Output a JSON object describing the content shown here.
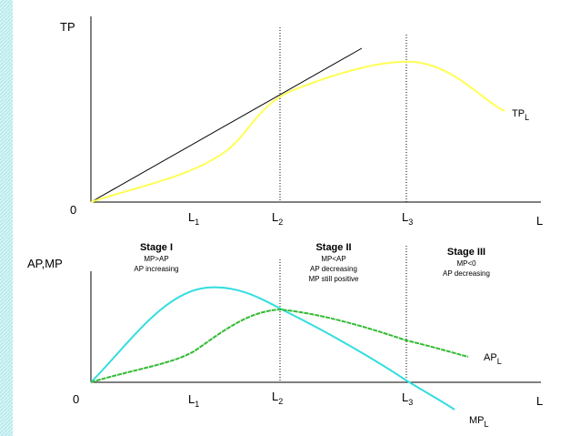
{
  "top": {
    "y_label": "TP",
    "origin": "0",
    "x_label": "L",
    "ticks": [
      {
        "main": "L",
        "sub": "1"
      },
      {
        "main": "L",
        "sub": "2"
      },
      {
        "main": "L",
        "sub": "3"
      }
    ],
    "curve_label": {
      "main": "TP",
      "sub": "L"
    }
  },
  "bottom": {
    "y_label": "AP,MP",
    "origin": "0",
    "x_label": "L",
    "ticks": [
      {
        "main": "L",
        "sub": "1"
      },
      {
        "main": "L",
        "sub": "2"
      },
      {
        "main": "L",
        "sub": "3"
      }
    ],
    "ap_label": {
      "main": "AP",
      "sub": "L"
    },
    "mp_label": {
      "main": "MP",
      "sub": "L"
    },
    "stages": [
      {
        "title": "Stage I",
        "lines": [
          "MP>AP",
          "AP increasing"
        ]
      },
      {
        "title": "Stage II",
        "lines": [
          "MP<AP",
          "AP decreasing",
          "MP still positive"
        ]
      },
      {
        "title": "Stage III",
        "lines": [
          "MP<0",
          "AP decreasing"
        ]
      }
    ]
  }
}
